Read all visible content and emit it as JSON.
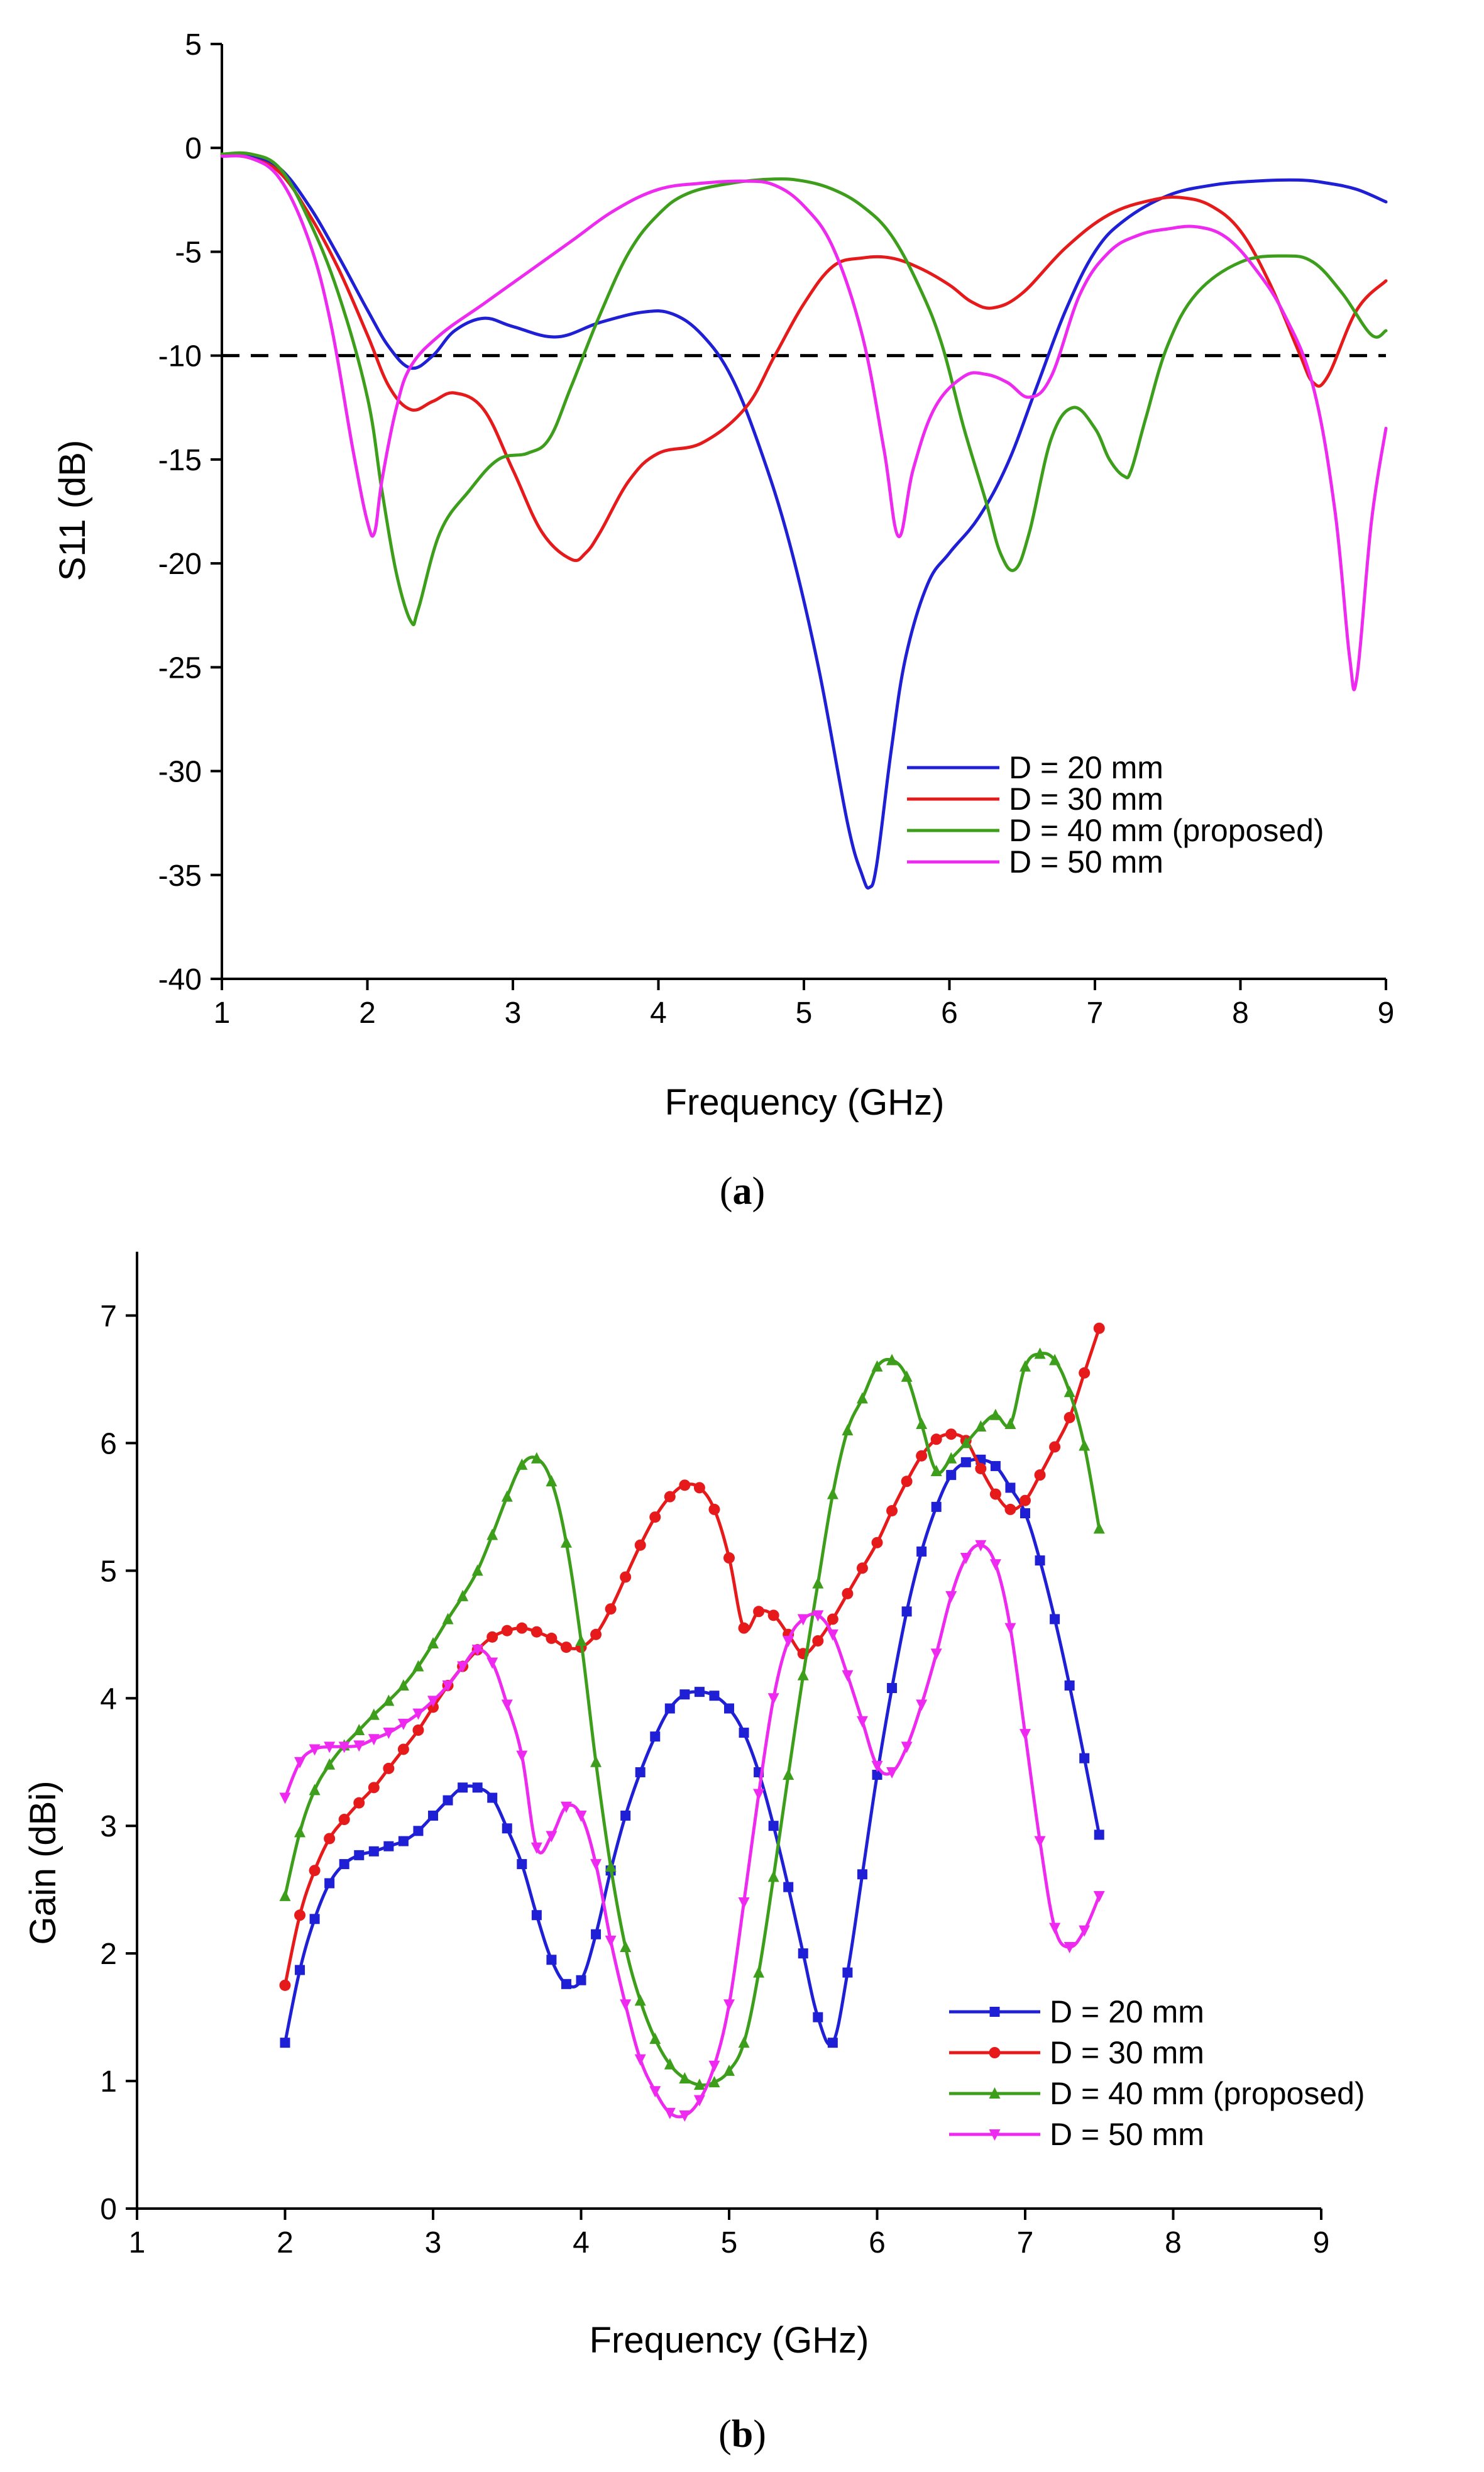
{
  "chart_data": [
    {
      "panel_label": "a",
      "type": "line",
      "xlabel": "Frequency (GHz)",
      "ylabel": "S11 (dB)",
      "xlim": [
        1,
        9
      ],
      "ylim": [
        -40,
        5
      ],
      "xticks": [
        "1",
        "2",
        "3",
        "4",
        "5",
        "6",
        "7",
        "8",
        "9"
      ],
      "yticks": [
        "5",
        "0",
        "-5",
        "-10",
        "-15",
        "-20",
        "-25",
        "-30",
        "-35",
        "-40"
      ],
      "grid": false,
      "legend_position": "bottom-right",
      "reference_line": {
        "y": -10,
        "style": "dashed",
        "color": "#000000"
      },
      "series": [
        {
          "name": "D = 20 mm",
          "color": "#1f1fd6",
          "x": [
            1.0,
            1.2,
            1.4,
            1.6,
            1.8,
            2.0,
            2.15,
            2.3,
            2.45,
            2.6,
            2.8,
            3.0,
            3.3,
            3.6,
            3.9,
            4.1,
            4.3,
            4.5,
            4.7,
            4.9,
            5.1,
            5.3,
            5.4,
            5.45,
            5.5,
            5.6,
            5.7,
            5.85,
            6.0,
            6.2,
            6.4,
            6.6,
            6.8,
            7.0,
            7.2,
            7.5,
            7.8,
            8.1,
            8.4,
            8.6,
            8.8,
            9.0
          ],
          "y": [
            -0.3,
            -0.4,
            -1.0,
            -2.8,
            -5.2,
            -7.8,
            -9.6,
            -10.6,
            -10.0,
            -8.8,
            -8.2,
            -8.6,
            -9.1,
            -8.4,
            -7.9,
            -8.0,
            -9.0,
            -11.0,
            -14.5,
            -19.0,
            -25.0,
            -32.5,
            -35.0,
            -35.6,
            -34.5,
            -29.0,
            -24.5,
            -21.0,
            -19.5,
            -17.8,
            -15.2,
            -11.5,
            -7.8,
            -5.0,
            -3.5,
            -2.3,
            -1.8,
            -1.6,
            -1.55,
            -1.7,
            -2.0,
            -2.6
          ]
        },
        {
          "name": "D = 30 mm",
          "color": "#e61a1a",
          "x": [
            1.0,
            1.2,
            1.4,
            1.6,
            1.8,
            2.0,
            2.15,
            2.3,
            2.45,
            2.6,
            2.8,
            3.0,
            3.2,
            3.4,
            3.5,
            3.6,
            3.8,
            4.0,
            4.3,
            4.6,
            4.8,
            5.0,
            5.2,
            5.4,
            5.6,
            5.8,
            6.0,
            6.15,
            6.3,
            6.5,
            6.8,
            7.1,
            7.4,
            7.6,
            7.8,
            8.0,
            8.2,
            8.4,
            8.5,
            8.6,
            8.8,
            9.0
          ],
          "y": [
            -0.3,
            -0.5,
            -1.2,
            -3.2,
            -5.8,
            -9.0,
            -11.5,
            -12.6,
            -12.2,
            -11.8,
            -12.6,
            -15.5,
            -18.5,
            -19.8,
            -19.5,
            -18.5,
            -16.0,
            -14.7,
            -14.2,
            -12.5,
            -10.0,
            -7.5,
            -5.7,
            -5.3,
            -5.3,
            -5.8,
            -6.6,
            -7.4,
            -7.7,
            -7.0,
            -4.8,
            -3.2,
            -2.5,
            -2.4,
            -2.8,
            -4.0,
            -6.5,
            -9.8,
            -11.3,
            -11.0,
            -7.8,
            -6.4
          ]
        },
        {
          "name": "D = 40 mm (proposed)",
          "color": "#3c9e1a",
          "x": [
            1.0,
            1.2,
            1.4,
            1.6,
            1.8,
            2.0,
            2.1,
            2.2,
            2.3,
            2.35,
            2.5,
            2.7,
            2.9,
            3.1,
            3.25,
            3.4,
            3.6,
            3.8,
            4.0,
            4.2,
            4.5,
            4.8,
            5.0,
            5.2,
            5.4,
            5.6,
            5.8,
            5.95,
            6.1,
            6.25,
            6.35,
            6.45,
            6.55,
            6.7,
            6.85,
            7.0,
            7.1,
            7.2,
            7.25,
            7.35,
            7.5,
            7.7,
            8.0,
            8.3,
            8.5,
            8.7,
            8.9,
            9.0
          ],
          "y": [
            -0.3,
            -0.3,
            -1.0,
            -3.5,
            -7.0,
            -12.0,
            -16.5,
            -20.5,
            -22.8,
            -22.2,
            -18.5,
            -16.5,
            -15.0,
            -14.7,
            -14.0,
            -11.5,
            -8.0,
            -5.0,
            -3.2,
            -2.2,
            -1.7,
            -1.5,
            -1.6,
            -2.0,
            -2.8,
            -4.2,
            -6.8,
            -9.5,
            -13.5,
            -17.0,
            -19.5,
            -20.3,
            -18.5,
            -14.0,
            -12.5,
            -13.5,
            -15.0,
            -15.8,
            -15.5,
            -13.0,
            -9.5,
            -7.0,
            -5.5,
            -5.2,
            -5.5,
            -7.0,
            -9.0,
            -8.8
          ]
        },
        {
          "name": "D = 50 mm",
          "color": "#ee2af0",
          "x": [
            1.0,
            1.2,
            1.4,
            1.6,
            1.75,
            1.9,
            2.0,
            2.05,
            2.1,
            2.2,
            2.3,
            2.5,
            2.8,
            3.1,
            3.4,
            3.7,
            4.0,
            4.3,
            4.6,
            4.8,
            5.0,
            5.2,
            5.4,
            5.55,
            5.65,
            5.75,
            5.9,
            6.1,
            6.25,
            6.4,
            6.55,
            6.7,
            6.9,
            7.1,
            7.3,
            7.5,
            7.7,
            7.9,
            8.1,
            8.3,
            8.5,
            8.65,
            8.75,
            8.8,
            8.9,
            9.0
          ],
          "y": [
            -0.4,
            -0.5,
            -1.5,
            -4.5,
            -8.5,
            -14.5,
            -18.0,
            -18.5,
            -16.0,
            -12.5,
            -10.5,
            -9.0,
            -7.5,
            -6.0,
            -4.5,
            -3.0,
            -2.0,
            -1.7,
            -1.6,
            -1.8,
            -2.8,
            -4.8,
            -9.0,
            -14.5,
            -18.7,
            -15.5,
            -12.5,
            -11.0,
            -10.9,
            -11.3,
            -12.0,
            -11.0,
            -7.0,
            -5.0,
            -4.2,
            -3.9,
            -3.8,
            -4.3,
            -5.8,
            -8.0,
            -11.5,
            -17.5,
            -24.5,
            -25.5,
            -18.0,
            -13.5
          ]
        }
      ]
    },
    {
      "panel_label": "b",
      "type": "line",
      "xlabel": "Frequency (GHz)",
      "ylabel": "Gain (dBi)",
      "xlim": [
        1,
        9
      ],
      "ylim": [
        0,
        7.5
      ],
      "xticks": [
        "1",
        "2",
        "3",
        "4",
        "5",
        "6",
        "7",
        "8",
        "9"
      ],
      "yticks": [
        "0",
        "1",
        "2",
        "3",
        "4",
        "5",
        "6",
        "7"
      ],
      "grid": false,
      "legend_position": "bottom-right",
      "series": [
        {
          "name": "D = 20 mm",
          "color": "#1f1fd6",
          "marker": "square",
          "x": [
            2.0,
            2.1,
            2.2,
            2.3,
            2.4,
            2.5,
            2.6,
            2.7,
            2.8,
            2.9,
            3.0,
            3.1,
            3.2,
            3.3,
            3.4,
            3.5,
            3.6,
            3.7,
            3.8,
            3.9,
            4.0,
            4.1,
            4.2,
            4.3,
            4.4,
            4.5,
            4.6,
            4.7,
            4.8,
            4.9,
            5.0,
            5.1,
            5.2,
            5.3,
            5.4,
            5.5,
            5.6,
            5.7,
            5.8,
            5.9,
            6.0,
            6.1,
            6.2,
            6.3,
            6.4,
            6.5,
            6.6,
            6.7,
            6.8,
            6.9,
            7.0,
            7.1,
            7.2,
            7.3,
            7.4,
            7.5
          ],
          "y": [
            1.3,
            1.87,
            2.27,
            2.55,
            2.7,
            2.77,
            2.8,
            2.84,
            2.88,
            2.96,
            3.08,
            3.2,
            3.3,
            3.3,
            3.22,
            2.98,
            2.7,
            2.3,
            1.95,
            1.76,
            1.79,
            2.15,
            2.65,
            3.08,
            3.42,
            3.7,
            3.92,
            4.03,
            4.05,
            4.02,
            3.92,
            3.73,
            3.42,
            3.0,
            2.52,
            2.0,
            1.5,
            1.3,
            1.85,
            2.62,
            3.4,
            4.08,
            4.68,
            5.15,
            5.5,
            5.75,
            5.85,
            5.87,
            5.82,
            5.65,
            5.45,
            5.08,
            4.62,
            4.1,
            3.53,
            2.93
          ]
        },
        {
          "name": "D = 30 mm",
          "color": "#e61a1a",
          "marker": "circle",
          "x": [
            2.0,
            2.1,
            2.2,
            2.3,
            2.4,
            2.5,
            2.6,
            2.7,
            2.8,
            2.9,
            3.0,
            3.1,
            3.2,
            3.3,
            3.4,
            3.5,
            3.6,
            3.7,
            3.8,
            3.9,
            4.0,
            4.1,
            4.2,
            4.3,
            4.4,
            4.5,
            4.6,
            4.7,
            4.8,
            4.9,
            5.0,
            5.1,
            5.2,
            5.3,
            5.4,
            5.5,
            5.6,
            5.7,
            5.8,
            5.9,
            6.0,
            6.1,
            6.2,
            6.3,
            6.4,
            6.5,
            6.6,
            6.7,
            6.8,
            6.9,
            7.0,
            7.1,
            7.2,
            7.3,
            7.4,
            7.5
          ],
          "y": [
            1.75,
            2.3,
            2.65,
            2.9,
            3.05,
            3.18,
            3.3,
            3.45,
            3.6,
            3.75,
            3.93,
            4.1,
            4.25,
            4.38,
            4.48,
            4.53,
            4.55,
            4.52,
            4.47,
            4.4,
            4.4,
            4.5,
            4.7,
            4.95,
            5.2,
            5.42,
            5.58,
            5.67,
            5.65,
            5.48,
            5.1,
            4.55,
            4.68,
            4.65,
            4.5,
            4.35,
            4.45,
            4.62,
            4.82,
            5.02,
            5.22,
            5.47,
            5.7,
            5.9,
            6.03,
            6.07,
            6.02,
            5.8,
            5.6,
            5.48,
            5.55,
            5.75,
            5.97,
            6.2,
            6.55,
            6.9
          ]
        },
        {
          "name": "D = 40 mm (proposed)",
          "color": "#3c9e1a",
          "marker": "triangle-up",
          "x": [
            2.0,
            2.1,
            2.2,
            2.3,
            2.4,
            2.5,
            2.6,
            2.7,
            2.8,
            2.9,
            3.0,
            3.1,
            3.2,
            3.3,
            3.4,
            3.5,
            3.6,
            3.7,
            3.8,
            3.9,
            4.0,
            4.1,
            4.2,
            4.3,
            4.4,
            4.5,
            4.6,
            4.7,
            4.8,
            4.9,
            5.0,
            5.1,
            5.2,
            5.3,
            5.4,
            5.5,
            5.6,
            5.7,
            5.8,
            5.9,
            6.0,
            6.1,
            6.2,
            6.3,
            6.4,
            6.5,
            6.6,
            6.7,
            6.8,
            6.9,
            7.0,
            7.1,
            7.2,
            7.3,
            7.4,
            7.5
          ],
          "y": [
            2.45,
            2.95,
            3.28,
            3.48,
            3.63,
            3.75,
            3.87,
            3.98,
            4.1,
            4.25,
            4.43,
            4.62,
            4.8,
            5.0,
            5.28,
            5.58,
            5.83,
            5.88,
            5.7,
            5.22,
            4.45,
            3.5,
            2.68,
            2.05,
            1.63,
            1.33,
            1.13,
            1.02,
            0.97,
            0.99,
            1.08,
            1.3,
            1.85,
            2.6,
            3.4,
            4.18,
            4.9,
            5.6,
            6.1,
            6.35,
            6.6,
            6.65,
            6.52,
            6.15,
            5.78,
            5.88,
            6.0,
            6.13,
            6.22,
            6.15,
            6.6,
            6.7,
            6.65,
            6.4,
            5.98,
            5.33
          ]
        },
        {
          "name": "D = 50 mm",
          "color": "#ee2af0",
          "marker": "triangle-down",
          "x": [
            2.0,
            2.1,
            2.2,
            2.3,
            2.4,
            2.5,
            2.6,
            2.7,
            2.8,
            2.9,
            3.0,
            3.1,
            3.2,
            3.3,
            3.4,
            3.5,
            3.6,
            3.7,
            3.8,
            3.9,
            4.0,
            4.1,
            4.2,
            4.3,
            4.4,
            4.5,
            4.6,
            4.7,
            4.8,
            4.9,
            5.0,
            5.1,
            5.2,
            5.3,
            5.4,
            5.5,
            5.6,
            5.7,
            5.8,
            5.9,
            6.0,
            6.1,
            6.2,
            6.3,
            6.4,
            6.5,
            6.6,
            6.7,
            6.8,
            6.9,
            7.0,
            7.1,
            7.2,
            7.3,
            7.4,
            7.5
          ],
          "y": [
            3.22,
            3.5,
            3.6,
            3.62,
            3.62,
            3.63,
            3.68,
            3.73,
            3.8,
            3.88,
            3.98,
            4.1,
            4.25,
            4.38,
            4.28,
            3.95,
            3.55,
            2.83,
            2.92,
            3.15,
            3.08,
            2.7,
            2.1,
            1.6,
            1.17,
            0.92,
            0.75,
            0.73,
            0.85,
            1.12,
            1.6,
            2.4,
            3.25,
            4.0,
            4.45,
            4.62,
            4.65,
            4.5,
            4.18,
            3.82,
            3.47,
            3.42,
            3.62,
            3.95,
            4.35,
            4.8,
            5.1,
            5.2,
            5.05,
            4.55,
            3.72,
            2.88,
            2.2,
            2.05,
            2.18,
            2.45
          ]
        }
      ]
    }
  ]
}
